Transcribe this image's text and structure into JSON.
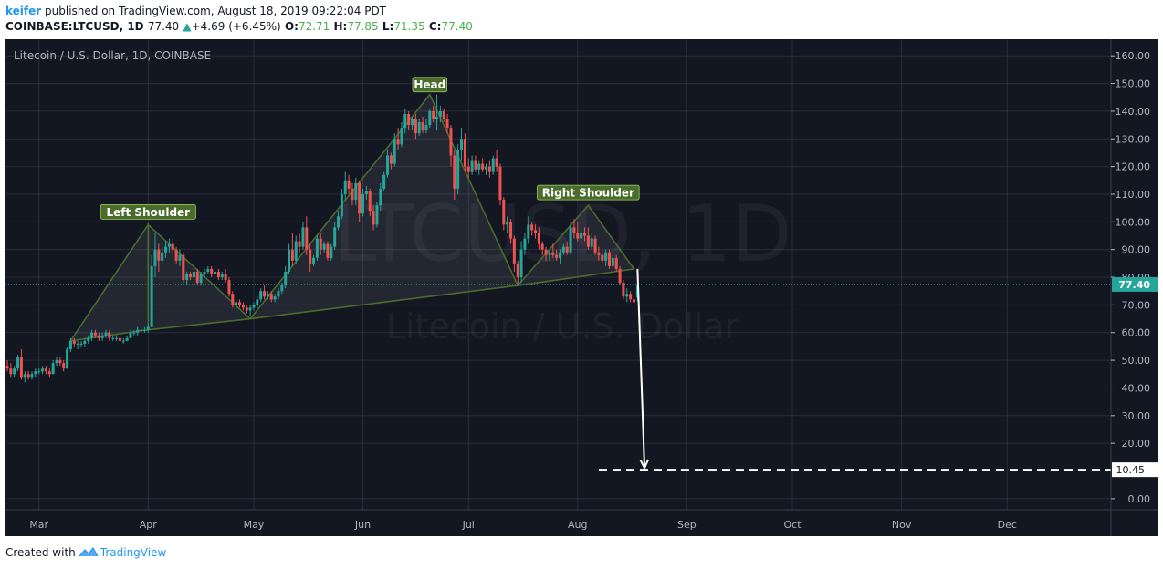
{
  "header": {
    "author": "keifer",
    "published_text": "published on TradingView.com, August 18, 2019 09:22:04 PDT",
    "symbol": "COINBASE:LTCUSD, 1D",
    "last": "77.40",
    "change": "+4.69 (+6.45%)",
    "o_label": "O:",
    "o": "72.71",
    "h_label": "H:",
    "h": "77.85",
    "l_label": "L:",
    "l": "71.35",
    "c_label": "C:",
    "c": "77.40"
  },
  "footer": {
    "created_with": "Created with",
    "brand": "TradingView"
  },
  "chart_data": {
    "type": "candlestick",
    "title": "Litecoin / U.S. Dollar, 1D, COINBASE",
    "watermark": {
      "symbol": "LTCUSD, 1D",
      "name": "Litecoin / U.S. Dollar"
    },
    "y_range": [
      -4,
      166
    ],
    "y_ticks": [
      "160.00",
      "150.00",
      "140.00",
      "130.00",
      "120.00",
      "110.00",
      "100.00",
      "90.00",
      "80.00",
      "70.00",
      "60.00",
      "50.00",
      "40.00",
      "30.00",
      "20.00",
      "10.00",
      "0.00"
    ],
    "x_range": [
      "2019-02-20",
      "2019-12-31"
    ],
    "x_ticks": [
      {
        "date": "2019-03-01",
        "label": "Mar"
      },
      {
        "date": "2019-04-01",
        "label": "Apr"
      },
      {
        "date": "2019-05-01",
        "label": "May"
      },
      {
        "date": "2019-06-01",
        "label": "Jun"
      },
      {
        "date": "2019-07-01",
        "label": "Jul"
      },
      {
        "date": "2019-08-01",
        "label": "Aug"
      },
      {
        "date": "2019-09-01",
        "label": "Sep"
      },
      {
        "date": "2019-10-01",
        "label": "Oct"
      },
      {
        "date": "2019-11-01",
        "label": "Nov"
      },
      {
        "date": "2019-12-01",
        "label": "Dec"
      }
    ],
    "last_price": {
      "value": 77.4,
      "label": "77.40"
    },
    "target": {
      "value": 10.45,
      "label": "10.45",
      "from_date": "2019-08-07"
    },
    "projection_arrow": {
      "from": {
        "date": "2019-08-18",
        "value": 83
      },
      "to": {
        "date": "2019-08-20",
        "value": 10.45
      }
    },
    "pattern_labels": [
      {
        "text": "Left Shoulder",
        "date": "2019-04-01",
        "value": 99
      },
      {
        "text": "Head",
        "date": "2019-06-20",
        "value": 145
      },
      {
        "text": "Right Shoulder",
        "date": "2019-08-04",
        "value": 106
      }
    ],
    "pattern_triangles": [
      [
        {
          "date": "2019-03-10",
          "value": 57
        },
        {
          "date": "2019-04-01",
          "value": 99
        },
        {
          "date": "2019-04-01",
          "value": 61
        }
      ],
      [
        {
          "date": "2019-04-01",
          "value": 61
        },
        {
          "date": "2019-04-01",
          "value": 99
        },
        {
          "date": "2019-04-30",
          "value": 65
        }
      ],
      [
        {
          "date": "2019-04-30",
          "value": 65
        },
        {
          "date": "2019-06-20",
          "value": 146
        },
        {
          "date": "2019-07-15",
          "value": 77
        }
      ],
      [
        {
          "date": "2019-07-15",
          "value": 77
        },
        {
          "date": "2019-08-04",
          "value": 106
        },
        {
          "date": "2019-08-17",
          "value": 83
        }
      ]
    ],
    "candles_ohlc": [
      [
        "2019-02-20",
        48,
        50,
        46,
        47
      ],
      [
        "2019-02-21",
        47,
        49,
        44,
        45
      ],
      [
        "2019-02-22",
        45,
        48,
        44,
        47
      ],
      [
        "2019-02-23",
        47,
        52,
        46,
        51
      ],
      [
        "2019-02-24",
        51,
        54,
        43,
        44
      ],
      [
        "2019-02-25",
        44,
        46,
        42,
        45
      ],
      [
        "2019-02-26",
        45,
        46,
        43,
        44
      ],
      [
        "2019-02-27",
        44,
        46,
        43,
        45
      ],
      [
        "2019-02-28",
        45,
        47,
        44,
        46
      ],
      [
        "2019-03-01",
        46,
        47,
        45,
        46
      ],
      [
        "2019-03-02",
        46,
        48,
        45,
        47
      ],
      [
        "2019-03-03",
        47,
        48,
        45,
        46
      ],
      [
        "2019-03-04",
        46,
        47,
        44,
        45
      ],
      [
        "2019-03-05",
        45,
        50,
        45,
        49
      ],
      [
        "2019-03-06",
        49,
        51,
        48,
        50
      ],
      [
        "2019-03-07",
        50,
        51,
        48,
        49
      ],
      [
        "2019-03-08",
        49,
        50,
        46,
        47
      ],
      [
        "2019-03-09",
        47,
        55,
        47,
        54
      ],
      [
        "2019-03-10",
        54,
        58,
        53,
        57
      ],
      [
        "2019-03-11",
        57,
        58,
        55,
        56
      ],
      [
        "2019-03-12",
        56,
        57,
        54,
        56
      ],
      [
        "2019-03-13",
        56,
        57,
        55,
        56
      ],
      [
        "2019-03-14",
        56,
        58,
        55,
        57
      ],
      [
        "2019-03-15",
        57,
        59,
        56,
        58
      ],
      [
        "2019-03-16",
        58,
        61,
        57,
        60
      ],
      [
        "2019-03-17",
        60,
        61,
        58,
        59
      ],
      [
        "2019-03-18",
        59,
        60,
        57,
        58
      ],
      [
        "2019-03-19",
        58,
        60,
        57,
        59
      ],
      [
        "2019-03-20",
        59,
        61,
        58,
        60
      ],
      [
        "2019-03-21",
        60,
        61,
        57,
        58
      ],
      [
        "2019-03-22",
        58,
        59,
        57,
        58
      ],
      [
        "2019-03-23",
        58,
        59,
        57,
        58
      ],
      [
        "2019-03-24",
        58,
        59,
        57,
        57
      ],
      [
        "2019-03-25",
        57,
        58,
        56,
        57
      ],
      [
        "2019-03-26",
        57,
        59,
        57,
        58
      ],
      [
        "2019-03-27",
        58,
        61,
        58,
        60
      ],
      [
        "2019-03-28",
        60,
        61,
        59,
        60
      ],
      [
        "2019-03-29",
        60,
        62,
        59,
        61
      ],
      [
        "2019-03-30",
        61,
        62,
        60,
        61
      ],
      [
        "2019-03-31",
        61,
        62,
        60,
        61
      ],
      [
        "2019-04-01",
        61,
        63,
        60,
        62
      ],
      [
        "2019-04-02",
        62,
        88,
        62,
        84
      ],
      [
        "2019-04-03",
        84,
        96,
        80,
        90
      ],
      [
        "2019-04-04",
        90,
        92,
        82,
        86
      ],
      [
        "2019-04-05",
        86,
        91,
        85,
        89
      ],
      [
        "2019-04-06",
        89,
        93,
        87,
        91
      ],
      [
        "2019-04-07",
        91,
        94,
        89,
        92
      ],
      [
        "2019-04-08",
        92,
        94,
        88,
        90
      ],
      [
        "2019-04-09",
        90,
        91,
        85,
        86
      ],
      [
        "2019-04-10",
        86,
        90,
        84,
        88
      ],
      [
        "2019-04-11",
        88,
        89,
        78,
        79
      ],
      [
        "2019-04-12",
        79,
        82,
        77,
        81
      ],
      [
        "2019-04-13",
        81,
        82,
        79,
        80
      ],
      [
        "2019-04-14",
        80,
        83,
        79,
        82
      ],
      [
        "2019-04-15",
        82,
        83,
        77,
        78
      ],
      [
        "2019-04-16",
        78,
        82,
        77,
        81
      ],
      [
        "2019-04-17",
        81,
        83,
        80,
        82
      ],
      [
        "2019-04-18",
        82,
        84,
        81,
        83
      ],
      [
        "2019-04-19",
        83,
        84,
        80,
        81
      ],
      [
        "2019-04-20",
        81,
        83,
        80,
        82
      ],
      [
        "2019-04-21",
        82,
        83,
        79,
        80
      ],
      [
        "2019-04-22",
        80,
        82,
        79,
        81
      ],
      [
        "2019-04-23",
        81,
        83,
        78,
        79
      ],
      [
        "2019-04-24",
        79,
        80,
        73,
        74
      ],
      [
        "2019-04-25",
        74,
        75,
        69,
        70
      ],
      [
        "2019-04-26",
        70,
        72,
        68,
        71
      ],
      [
        "2019-04-27",
        71,
        72,
        69,
        70
      ],
      [
        "2019-04-28",
        70,
        71,
        68,
        69
      ],
      [
        "2019-04-29",
        69,
        70,
        67,
        68
      ],
      [
        "2019-04-30",
        68,
        70,
        66,
        69
      ],
      [
        "2019-05-01",
        69,
        71,
        68,
        70
      ],
      [
        "2019-05-02",
        70,
        73,
        69,
        72
      ],
      [
        "2019-05-03",
        72,
        76,
        71,
        75
      ],
      [
        "2019-05-04",
        75,
        77,
        72,
        73
      ],
      [
        "2019-05-05",
        73,
        75,
        72,
        74
      ],
      [
        "2019-05-06",
        74,
        75,
        71,
        72
      ],
      [
        "2019-05-07",
        72,
        74,
        71,
        73
      ],
      [
        "2019-05-08",
        73,
        76,
        72,
        75
      ],
      [
        "2019-05-09",
        75,
        78,
        74,
        77
      ],
      [
        "2019-05-10",
        77,
        84,
        76,
        82
      ],
      [
        "2019-05-11",
        82,
        92,
        81,
        90
      ],
      [
        "2019-05-12",
        90,
        96,
        84,
        86
      ],
      [
        "2019-05-13",
        86,
        95,
        85,
        93
      ],
      [
        "2019-05-14",
        93,
        96,
        89,
        91
      ],
      [
        "2019-05-15",
        91,
        100,
        90,
        98
      ],
      [
        "2019-05-16",
        98,
        102,
        88,
        90
      ],
      [
        "2019-05-17",
        90,
        92,
        82,
        85
      ],
      [
        "2019-05-18",
        85,
        88,
        84,
        87
      ],
      [
        "2019-05-19",
        87,
        95,
        86,
        94
      ],
      [
        "2019-05-20",
        94,
        96,
        88,
        90
      ],
      [
        "2019-05-21",
        90,
        93,
        89,
        92
      ],
      [
        "2019-05-22",
        92,
        93,
        86,
        87
      ],
      [
        "2019-05-23",
        87,
        92,
        86,
        91
      ],
      [
        "2019-05-24",
        91,
        100,
        90,
        98
      ],
      [
        "2019-05-25",
        98,
        104,
        97,
        102
      ],
      [
        "2019-05-26",
        102,
        112,
        101,
        110
      ],
      [
        "2019-05-27",
        110,
        118,
        108,
        115
      ],
      [
        "2019-05-28",
        115,
        117,
        110,
        112
      ],
      [
        "2019-05-29",
        112,
        114,
        106,
        108
      ],
      [
        "2019-05-30",
        108,
        116,
        106,
        114
      ],
      [
        "2019-05-31",
        114,
        115,
        100,
        103
      ],
      [
        "2019-06-01",
        103,
        112,
        102,
        110
      ],
      [
        "2019-06-02",
        110,
        113,
        108,
        111
      ],
      [
        "2019-06-03",
        111,
        112,
        102,
        104
      ],
      [
        "2019-06-04",
        104,
        106,
        97,
        99
      ],
      [
        "2019-06-05",
        99,
        107,
        98,
        106
      ],
      [
        "2019-06-06",
        106,
        114,
        104,
        112
      ],
      [
        "2019-06-07",
        112,
        118,
        111,
        117
      ],
      [
        "2019-06-08",
        117,
        126,
        116,
        124
      ],
      [
        "2019-06-09",
        124,
        125,
        119,
        121
      ],
      [
        "2019-06-10",
        121,
        132,
        120,
        130
      ],
      [
        "2019-06-11",
        130,
        134,
        126,
        128
      ],
      [
        "2019-06-12",
        128,
        136,
        127,
        134
      ],
      [
        "2019-06-13",
        134,
        141,
        132,
        139
      ],
      [
        "2019-06-14",
        139,
        140,
        133,
        135
      ],
      [
        "2019-06-15",
        135,
        138,
        133,
        137
      ],
      [
        "2019-06-16",
        137,
        139,
        130,
        132
      ],
      [
        "2019-06-17",
        132,
        137,
        131,
        136
      ],
      [
        "2019-06-18",
        136,
        138,
        132,
        133
      ],
      [
        "2019-06-19",
        133,
        137,
        132,
        135
      ],
      [
        "2019-06-20",
        135,
        141,
        134,
        140
      ],
      [
        "2019-06-21",
        140,
        142,
        136,
        137
      ],
      [
        "2019-06-22",
        137,
        146,
        133,
        138
      ],
      [
        "2019-06-23",
        138,
        142,
        136,
        140
      ],
      [
        "2019-06-24",
        140,
        141,
        136,
        137
      ],
      [
        "2019-06-25",
        137,
        139,
        132,
        134
      ],
      [
        "2019-06-26",
        134,
        135,
        120,
        124
      ],
      [
        "2019-06-27",
        124,
        126,
        108,
        112
      ],
      [
        "2019-06-28",
        112,
        128,
        110,
        126
      ],
      [
        "2019-06-29",
        126,
        134,
        122,
        130
      ],
      [
        "2019-06-30",
        130,
        132,
        118,
        120
      ],
      [
        "2019-07-01",
        120,
        123,
        116,
        118
      ],
      [
        "2019-07-02",
        118,
        124,
        117,
        122
      ],
      [
        "2019-07-03",
        122,
        124,
        118,
        119
      ],
      [
        "2019-07-04",
        119,
        122,
        117,
        121
      ],
      [
        "2019-07-05",
        121,
        123,
        118,
        119
      ],
      [
        "2019-07-06",
        119,
        121,
        117,
        120
      ],
      [
        "2019-07-07",
        120,
        122,
        116,
        118
      ],
      [
        "2019-07-08",
        118,
        124,
        117,
        123
      ],
      [
        "2019-07-09",
        123,
        126,
        118,
        120
      ],
      [
        "2019-07-10",
        120,
        121,
        106,
        108
      ],
      [
        "2019-07-11",
        108,
        109,
        97,
        99
      ],
      [
        "2019-07-12",
        99,
        102,
        96,
        100
      ],
      [
        "2019-07-13",
        100,
        101,
        92,
        94
      ],
      [
        "2019-07-14",
        94,
        95,
        82,
        85
      ],
      [
        "2019-07-15",
        85,
        86,
        77,
        80
      ],
      [
        "2019-07-16",
        80,
        93,
        78,
        90
      ],
      [
        "2019-07-17",
        90,
        96,
        88,
        94
      ],
      [
        "2019-07-18",
        94,
        102,
        92,
        99
      ],
      [
        "2019-07-19",
        99,
        100,
        95,
        97
      ],
      [
        "2019-07-20",
        97,
        99,
        94,
        96
      ],
      [
        "2019-07-21",
        96,
        98,
        90,
        92
      ],
      [
        "2019-07-22",
        92,
        93,
        88,
        90
      ],
      [
        "2019-07-23",
        90,
        91,
        86,
        88
      ],
      [
        "2019-07-24",
        88,
        90,
        86,
        89
      ],
      [
        "2019-07-25",
        89,
        92,
        87,
        88
      ],
      [
        "2019-07-26",
        88,
        90,
        86,
        87
      ],
      [
        "2019-07-27",
        87,
        90,
        85,
        89
      ],
      [
        "2019-07-28",
        89,
        92,
        88,
        91
      ],
      [
        "2019-07-29",
        91,
        93,
        88,
        89
      ],
      [
        "2019-07-30",
        89,
        100,
        88,
        98
      ],
      [
        "2019-07-31",
        98,
        101,
        94,
        96
      ],
      [
        "2019-08-01",
        96,
        100,
        93,
        94
      ],
      [
        "2019-08-02",
        94,
        97,
        92,
        96
      ],
      [
        "2019-08-03",
        96,
        98,
        93,
        95
      ],
      [
        "2019-08-04",
        95,
        98,
        90,
        91
      ],
      [
        "2019-08-05",
        91,
        96,
        90,
        94
      ],
      [
        "2019-08-06",
        94,
        95,
        88,
        89
      ],
      [
        "2019-08-07",
        89,
        91,
        86,
        88
      ],
      [
        "2019-08-08",
        88,
        90,
        85,
        86
      ],
      [
        "2019-08-09",
        86,
        90,
        84,
        89
      ],
      [
        "2019-08-10",
        89,
        90,
        83,
        84
      ],
      [
        "2019-08-11",
        84,
        88,
        83,
        87
      ],
      [
        "2019-08-12",
        87,
        88,
        82,
        83
      ],
      [
        "2019-08-13",
        83,
        84,
        77,
        78
      ],
      [
        "2019-08-14",
        78,
        79,
        72,
        73
      ],
      [
        "2019-08-15",
        73,
        76,
        71,
        74
      ],
      [
        "2019-08-16",
        74,
        75,
        71,
        72
      ],
      [
        "2019-08-17",
        72,
        73,
        70,
        71
      ],
      [
        "2019-08-18",
        72.71,
        77.85,
        71.35,
        77.4
      ]
    ]
  },
  "colors": {
    "background": "#131722",
    "grid": "#363c4e",
    "text": "#b2b5be",
    "up": "#26a69a",
    "down": "#ef5350",
    "pattern_stroke": "#4b6b2c",
    "pattern_fill": "#ffffff",
    "label_bg": "#4a6d2c",
    "label_border": "#9fce66",
    "last_price": "#26a69a",
    "target_line": "#ffffff"
  }
}
